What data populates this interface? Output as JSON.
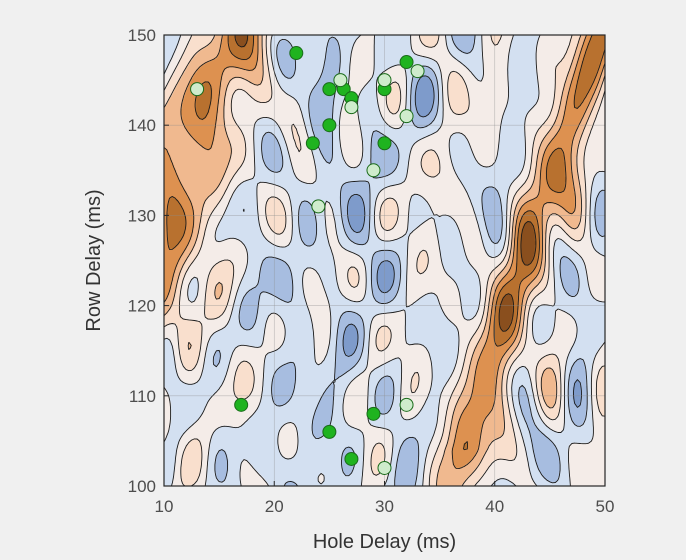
{
  "chart_data": {
    "type": "contour",
    "title": "",
    "xlabel": "Hole Delay (ms)",
    "ylabel": "Row Delay (ms)",
    "xlim": [
      10,
      50
    ],
    "ylim": [
      100,
      150
    ],
    "xticks": [
      10,
      20,
      30,
      40,
      50
    ],
    "yticks": [
      100,
      110,
      120,
      130,
      140,
      150
    ],
    "grid": true,
    "contour_levels": 9,
    "colors": {
      "background": "#f0f0f0",
      "plot_background": "#fbeee5",
      "level_colors": [
        "#7e9bcb",
        "#a7bde0",
        "#d3e0f1",
        "#f4ece8",
        "#f9dfcd",
        "#f0b98f",
        "#dd9150",
        "#b8712f",
        "#8a4f1e"
      ],
      "contour_line": "#1a1a1a",
      "grid": "#8c8c8c",
      "marker_dark": "#1fb31f",
      "marker_light": "#cfeccc",
      "marker_edge": "#1a6b1a"
    },
    "ridges": [
      {
        "name": "main ridge",
        "trend": "diagonal from (36,100) to (46,137)",
        "peak_approx": [
          41,
          118
        ]
      },
      {
        "name": "secondary ridge",
        "trend": "diagonal from (30,100) to (42,150)"
      }
    ],
    "series": [
      {
        "marker": "dark-green",
        "points": [
          {
            "x": 22,
            "y": 148
          },
          {
            "x": 25,
            "y": 144
          },
          {
            "x": 26.3,
            "y": 144
          },
          {
            "x": 27,
            "y": 143
          },
          {
            "x": 25,
            "y": 140
          },
          {
            "x": 23.5,
            "y": 138
          },
          {
            "x": 30,
            "y": 138
          },
          {
            "x": 30,
            "y": 144
          },
          {
            "x": 32,
            "y": 147
          },
          {
            "x": 17,
            "y": 109
          },
          {
            "x": 29,
            "y": 108
          },
          {
            "x": 25,
            "y": 106
          },
          {
            "x": 27,
            "y": 103
          }
        ]
      },
      {
        "marker": "light-green",
        "points": [
          {
            "x": 13,
            "y": 144
          },
          {
            "x": 26,
            "y": 145
          },
          {
            "x": 27,
            "y": 142
          },
          {
            "x": 30,
            "y": 145
          },
          {
            "x": 33,
            "y": 146
          },
          {
            "x": 32,
            "y": 141
          },
          {
            "x": 29,
            "y": 135
          },
          {
            "x": 24,
            "y": 131
          },
          {
            "x": 32,
            "y": 109
          },
          {
            "x": 30,
            "y": 102
          }
        ]
      }
    ]
  }
}
